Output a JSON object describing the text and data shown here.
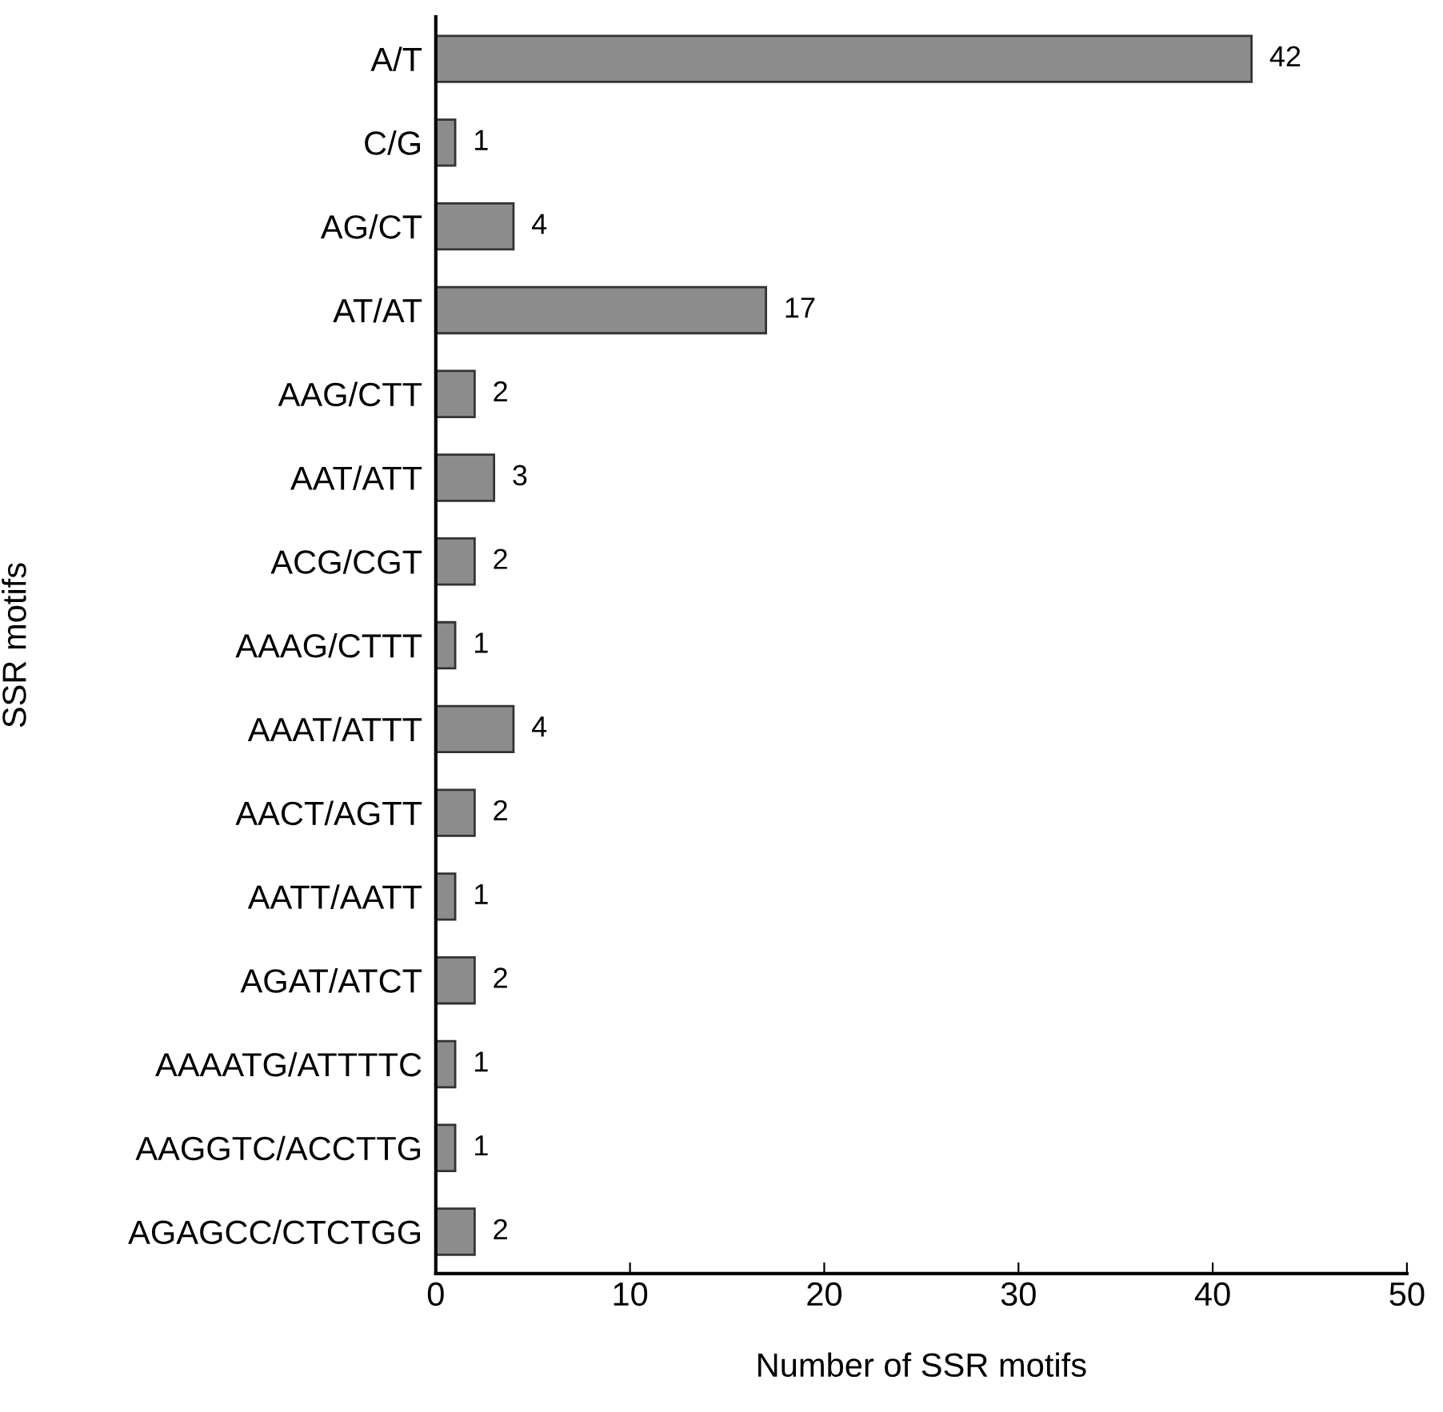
{
  "chart_data": {
    "type": "bar",
    "orientation": "horizontal",
    "xlabel": "Number of SSR motifs",
    "ylabel": "SSR motifs",
    "categories": [
      "A/T",
      "C/G",
      "AG/CT",
      "AT/AT",
      "AAG/CTT",
      "AAT/ATT",
      "ACG/CGT",
      "AAAG/CTTT",
      "AAAT/ATTT",
      "AACT/AGTT",
      "AATT/AATT",
      "AGAT/ATCT",
      "AAAATG/ATTTTC",
      "AAGGTC/ACCTTG",
      "AGAGCC/CTCTGG"
    ],
    "values": [
      42,
      1,
      4,
      17,
      2,
      3,
      2,
      1,
      4,
      2,
      1,
      2,
      1,
      1,
      2
    ],
    "color": "#8c8c8c",
    "xlim": [
      0,
      50
    ],
    "xticks": [
      0,
      10,
      20,
      30,
      40,
      50
    ],
    "data_labels": true,
    "grid": false,
    "legend": false
  }
}
